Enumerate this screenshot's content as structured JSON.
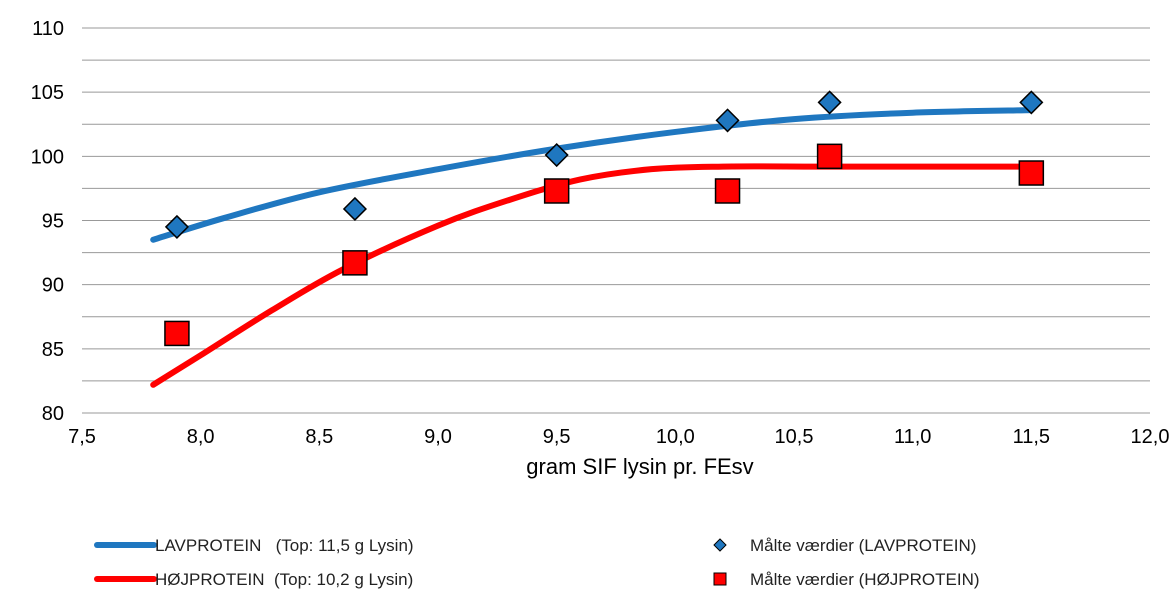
{
  "chart_data": {
    "type": "line",
    "title": "",
    "xlabel": "gram SIF lysin pr. FEsv",
    "ylabel": "",
    "xlim": [
      7.5,
      12.0
    ],
    "ylim": [
      80,
      110
    ],
    "x_ticks": [
      "7,5",
      "8,0",
      "8,5",
      "9,0",
      "9,5",
      "10,0",
      "10,5",
      "11,0",
      "11,5",
      "12,0"
    ],
    "y_ticks": [
      "80",
      "85",
      "90",
      "95",
      "100",
      "105",
      "110"
    ],
    "grid": true,
    "legend_position": "bottom",
    "series": [
      {
        "name": "LAVPROTEIN   (Top: 11,5 g Lysin)",
        "kind": "line",
        "color": "#1f77c0",
        "x": [
          7.8,
          8.1,
          8.5,
          9.0,
          9.5,
          10.0,
          10.5,
          11.0,
          11.5
        ],
        "y": [
          93.5,
          95.2,
          97.2,
          99.0,
          100.6,
          101.9,
          102.9,
          103.4,
          103.6
        ]
      },
      {
        "name": "HØJPROTEIN  (Top: 10,2 g Lysin)",
        "kind": "line",
        "color": "#ff0000",
        "x": [
          7.8,
          8.0,
          8.3,
          8.6,
          9.0,
          9.3,
          9.6,
          9.9,
          10.2,
          10.6,
          11.0,
          11.5
        ],
        "y": [
          82.2,
          84.5,
          88.0,
          91.2,
          94.6,
          96.6,
          98.2,
          99.0,
          99.2,
          99.2,
          99.2,
          99.2
        ]
      },
      {
        "name": "Målte værdier (LAVPROTEIN)",
        "kind": "scatter",
        "marker": "diamond",
        "color": "#1f77c0",
        "x": [
          7.9,
          8.65,
          9.5,
          10.22,
          10.65,
          11.5
        ],
        "y": [
          94.5,
          95.9,
          100.1,
          102.8,
          104.2,
          104.2
        ]
      },
      {
        "name": "Målte værdier (HØJPROTEIN)",
        "kind": "scatter",
        "marker": "square",
        "color": "#ff0000",
        "x": [
          7.9,
          8.65,
          9.5,
          10.22,
          10.65,
          11.5
        ],
        "y": [
          86.2,
          91.7,
          97.3,
          97.3,
          100.0,
          98.7
        ]
      }
    ]
  }
}
